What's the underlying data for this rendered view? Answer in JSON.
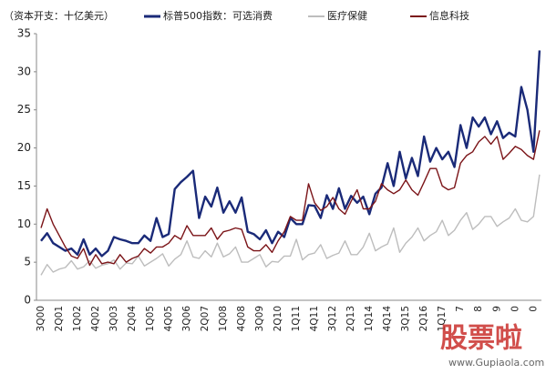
{
  "chart_data": {
    "type": "line",
    "unit_note": "（资本开支：十亿美元）",
    "categories": [
      "3Q00",
      null,
      null,
      "2Q01",
      null,
      null,
      "1Q02",
      null,
      null,
      "4Q02",
      null,
      null,
      "3Q03",
      null,
      null,
      "2Q04",
      null,
      null,
      "1Q05",
      null,
      null,
      "4Q05",
      null,
      null,
      "3Q06",
      null,
      null,
      "2Q07",
      null,
      null,
      "1Q08",
      null,
      null,
      "4Q08",
      null,
      null,
      "3Q09",
      null,
      null,
      "2Q10",
      null,
      null,
      "1Q11",
      null,
      null,
      "4Q11",
      null,
      null,
      "3Q12",
      null,
      null,
      "2Q13",
      null,
      null,
      "1Q14",
      null,
      null,
      "4Q14",
      null,
      null,
      "3Q15",
      null,
      null,
      "2Q16",
      null,
      null,
      "1Q17",
      null,
      null,
      "7",
      null,
      null,
      "8",
      null,
      null,
      "9",
      null,
      null,
      "0",
      null,
      null,
      "0",
      null
    ],
    "series": [
      {
        "name": "标普500指数：可选消费",
        "color": "#1a2a78",
        "width": 2.4,
        "values": [
          7.8,
          8.8,
          7.5,
          7,
          6.5,
          6.8,
          6,
          8,
          6,
          6.8,
          5.8,
          6.5,
          8.3,
          8,
          7.8,
          7.5,
          7.5,
          8.5,
          7.8,
          10.8,
          8.3,
          8.7,
          14.6,
          15.5,
          16.2,
          17,
          10.8,
          13.6,
          12.3,
          14.8,
          11.5,
          13,
          11.5,
          13.5,
          9,
          8.7,
          8,
          9.2,
          7.5,
          9,
          8.3,
          10.8,
          10,
          10,
          12.5,
          12.4,
          10.8,
          13.8,
          12,
          14.7,
          12,
          13.7,
          12.8,
          13.6,
          11.3,
          14,
          14.8,
          18,
          15,
          19.5,
          16,
          18.7,
          16.3,
          21.5,
          18.2,
          20,
          18.5,
          19.5,
          17.5,
          23,
          20,
          24,
          22.8,
          24,
          21.8,
          23.5,
          21.3,
          22,
          21.5,
          28,
          25,
          19.5,
          32.8
        ]
      },
      {
        "name": "医疗保健",
        "color": "#bdbdbd",
        "width": 1.4,
        "values": [
          3.3,
          4.7,
          3.7,
          4.1,
          4.3,
          5.2,
          4.1,
          4.4,
          5.2,
          4.2,
          4.6,
          4.8,
          5.3,
          4.1,
          4.9,
          4.8,
          5.8,
          4.5,
          5,
          5.5,
          6.1,
          4.5,
          5.4,
          6,
          7.8,
          5.7,
          5.5,
          6.5,
          5.7,
          7.5,
          5.7,
          6.1,
          7,
          5,
          5,
          5.5,
          6,
          4.4,
          5.1,
          5,
          5.8,
          5.8,
          8,
          5.3,
          6,
          6.2,
          7.3,
          5.5,
          5.9,
          6.2,
          7.8,
          6,
          6,
          7,
          8.8,
          6.5,
          7,
          7.4,
          9.5,
          6.3,
          7.5,
          8.3,
          9.5,
          7.8,
          8.5,
          9,
          10.5,
          8.5,
          9.2,
          10.5,
          11.5,
          9.3,
          10,
          11,
          11,
          9.7,
          10.3,
          10.8,
          12,
          10.5,
          10.3,
          11,
          16.5
        ]
      },
      {
        "name": "信息科技",
        "color": "#7b1418",
        "width": 1.4,
        "values": [
          9.5,
          12,
          10,
          8.5,
          7,
          5.8,
          5.5,
          6.8,
          4.6,
          6,
          4.8,
          5,
          4.8,
          6,
          5,
          5.5,
          5.8,
          6.8,
          6.2,
          7,
          7,
          7.5,
          8.5,
          8,
          9.8,
          8.5,
          8.5,
          8.5,
          9.5,
          8,
          9,
          9.2,
          9.5,
          9.3,
          7,
          6.5,
          6.5,
          7.3,
          6.3,
          7.8,
          9,
          11,
          10.5,
          10.5,
          15.3,
          12.8,
          11.8,
          12.3,
          13.5,
          12,
          11.3,
          13,
          14.5,
          12,
          12,
          13,
          15.3,
          14.5,
          14,
          14.5,
          15.8,
          14.5,
          13.8,
          15.5,
          17.3,
          17.3,
          15,
          14.5,
          14.8,
          18,
          19,
          19.5,
          20.8,
          21.5,
          20.5,
          21.5,
          18.5,
          19.3,
          20.2,
          19.8,
          19,
          18.5,
          22.3
        ]
      }
    ],
    "ylim": [
      0,
      35
    ],
    "yticks": [
      0,
      5,
      10,
      15,
      20,
      25,
      30,
      35
    ],
    "grid": false,
    "legend": "top",
    "watermark": [
      "股票啦",
      "www.Gupiaola.com"
    ]
  }
}
